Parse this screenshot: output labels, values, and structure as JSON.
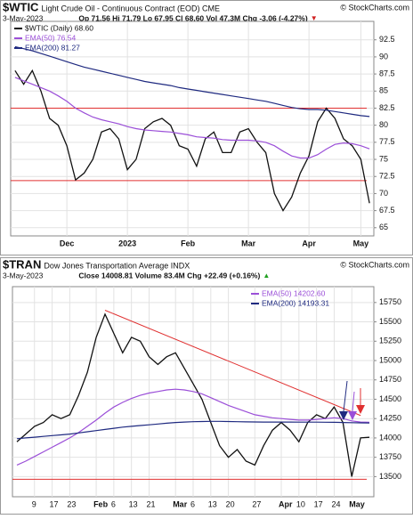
{
  "chart_data": [
    {
      "type": "line",
      "title": "$WTIC",
      "subtitle": "Light Crude Oil - Continuous Contract (EOD) CME",
      "source": "© StockCharts.com",
      "date": "3-May-2023",
      "stats": "Op 71.56 Hi 71.79 Lo 67.95 Cl 68.60 Vol 47.3M Chg -3.06 (-4.27%)",
      "change_marker": "▼",
      "change_color": "#d02020",
      "legend": "upper left",
      "grid": true,
      "categories": [
        null,
        null,
        null,
        null,
        null,
        null,
        "Dec",
        null,
        null,
        null,
        null,
        null,
        null,
        "2023",
        null,
        null,
        null,
        null,
        null,
        null,
        "Feb",
        null,
        null,
        null,
        null,
        null,
        null,
        "Mar",
        null,
        null,
        null,
        null,
        null,
        null,
        "Apr",
        null,
        null,
        null,
        null,
        null,
        "May",
        null
      ],
      "series": [
        {
          "name": "$WTIC (Daily) 68.60",
          "color": "#111111",
          "values": [
            88,
            86,
            88,
            85,
            81,
            80,
            77,
            72,
            73,
            75,
            79,
            79.5,
            78,
            73.5,
            75,
            79.5,
            80.5,
            81,
            80,
            77,
            76.5,
            74,
            78,
            79,
            76,
            76,
            79,
            79.5,
            77.5,
            76,
            70,
            67.5,
            69.5,
            73,
            75.5,
            80.5,
            82.5,
            81,
            78,
            77,
            75,
            68.6
          ]
        },
        {
          "name": "EMA(50) 76.54",
          "color": "#9b4fd8",
          "values": [
            87,
            86.5,
            86,
            85.5,
            85,
            84.3,
            83.5,
            82.5,
            81.8,
            81.2,
            80.8,
            80.5,
            80.2,
            79.8,
            79.5,
            79.3,
            79.2,
            79.1,
            79,
            78.8,
            78.6,
            78.3,
            78.2,
            78.1,
            77.9,
            77.8,
            77.8,
            77.8,
            77.7,
            77.5,
            77,
            76.2,
            75.5,
            75.2,
            75.2,
            75.7,
            76.5,
            77.2,
            77.4,
            77.3,
            77,
            76.54
          ]
        },
        {
          "name": "EMA(200) 81.27",
          "color": "#1f2a80",
          "values": [
            91.5,
            91.2,
            90.9,
            90.5,
            90.1,
            89.7,
            89.3,
            88.9,
            88.5,
            88.2,
            87.9,
            87.6,
            87.3,
            87,
            86.7,
            86.4,
            86.2,
            86,
            85.8,
            85.5,
            85.3,
            85.1,
            84.9,
            84.7,
            84.5,
            84.3,
            84.1,
            83.9,
            83.7,
            83.5,
            83.2,
            82.9,
            82.6,
            82.4,
            82.3,
            82.3,
            82.2,
            82,
            81.8,
            81.6,
            81.4,
            81.27
          ]
        }
      ],
      "hlines": [
        {
          "value": 82.5,
          "color": "#e03030"
        },
        {
          "value": 71.9,
          "color": "#e03030"
        }
      ],
      "ylim": [
        63.8,
        95.2
      ],
      "yticks": [
        65,
        67.5,
        70,
        72.5,
        75,
        77.5,
        80,
        82.5,
        85,
        87.5,
        90,
        92.5
      ]
    },
    {
      "type": "line",
      "title": "$TRAN",
      "subtitle": "Dow Jones Transportation Average INDX",
      "source": "© StockCharts.com",
      "date": "3-May-2023",
      "stats": "Close 14008.81 Volume 83.4M Chg +22.49 (+0.16%)",
      "change_marker": "▲",
      "change_color": "#20a020",
      "legend": "upper right",
      "grid": true,
      "categories": [
        null,
        null,
        "9",
        null,
        "17",
        null,
        "23",
        null,
        null,
        "Feb",
        null,
        "6",
        null,
        "13",
        null,
        "21",
        null,
        null,
        "Mar",
        null,
        "6",
        null,
        "13",
        null,
        "20",
        null,
        null,
        "27",
        null,
        null,
        "Apr",
        null,
        "10",
        null,
        "17",
        null,
        "24",
        null,
        "May",
        null,
        null
      ],
      "series": [
        {
          "color": "#111111",
          "values": [
            13950,
            14050,
            14150,
            14200,
            14300,
            14250,
            14300,
            14550,
            14850,
            15300,
            15600,
            15350,
            15100,
            15300,
            15250,
            15050,
            14950,
            15050,
            15100,
            14900,
            14700,
            14500,
            14200,
            13900,
            13750,
            13850,
            13700,
            13650,
            13900,
            14100,
            14200,
            14100,
            13950,
            14200,
            14300,
            14250,
            14400,
            14200,
            13500,
            14000,
            14008.81
          ]
        },
        {
          "name": "EMA(50) 14202.60",
          "color": "#9b4fd8",
          "values": [
            13650,
            13700,
            13760,
            13820,
            13880,
            13940,
            14000,
            14070,
            14150,
            14230,
            14320,
            14400,
            14460,
            14510,
            14550,
            14580,
            14600,
            14620,
            14630,
            14620,
            14600,
            14570,
            14520,
            14470,
            14420,
            14380,
            14340,
            14300,
            14280,
            14260,
            14250,
            14240,
            14230,
            14230,
            14240,
            14250,
            14260,
            14250,
            14220,
            14205,
            14202.6
          ]
        },
        {
          "name": "EMA(200) 14193.31",
          "color": "#1f2a80",
          "values": [
            13990,
            14000,
            14010,
            14020,
            14030,
            14040,
            14050,
            14065,
            14080,
            14095,
            14110,
            14125,
            14140,
            14150,
            14160,
            14170,
            14180,
            14190,
            14200,
            14205,
            14210,
            14212,
            14214,
            14214,
            14212,
            14210,
            14208,
            14206,
            14205,
            14205,
            14205,
            14205,
            14204,
            14204,
            14204,
            14203,
            14202,
            14200,
            14197,
            14195,
            14193.31
          ]
        }
      ],
      "hlines": [
        {
          "value": 13466,
          "color": "#e03030"
        }
      ],
      "trend_lines": [
        {
          "x": [
            10,
            39
          ],
          "y": [
            15650,
            14290
          ],
          "color": "#e03030"
        }
      ],
      "ylim": [
        13240,
        15955
      ],
      "yticks": [
        13500,
        13750,
        14000,
        14250,
        14500,
        14750,
        15000,
        15250,
        15500,
        15750
      ]
    }
  ]
}
